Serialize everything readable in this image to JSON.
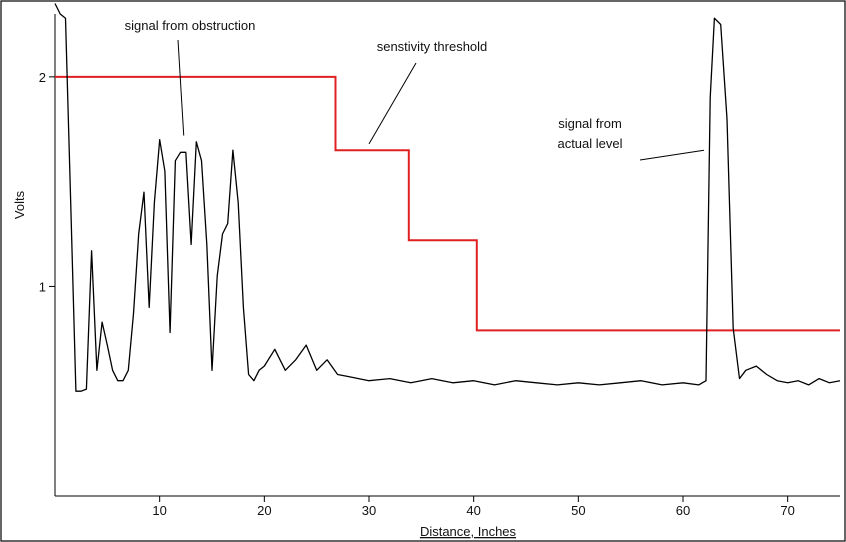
{
  "chart_data": {
    "type": "line",
    "title": "",
    "xlabel": "Distance, Inches",
    "ylabel": "Volts",
    "xlim": [
      0,
      75
    ],
    "ylim": [
      0,
      2.3
    ],
    "x_ticks": [
      10,
      20,
      30,
      40,
      50,
      60,
      70
    ],
    "y_ticks": [
      1,
      2
    ],
    "grid": false,
    "legend": "none",
    "colors": {
      "signal": "#000000",
      "threshold": "#e02020",
      "frame": "#000000"
    },
    "series": [
      {
        "role": "signal",
        "x": [
          0,
          0.5,
          1,
          1.5,
          2,
          2.5,
          3,
          3.5,
          4,
          4.5,
          5,
          5.5,
          6,
          6.5,
          7,
          7.5,
          8,
          8.5,
          9,
          9.5,
          10,
          10.5,
          11,
          11.5,
          12,
          12.5,
          13,
          13.5,
          14,
          14.5,
          15,
          15.5,
          16,
          16.5,
          17,
          17.5,
          18,
          18.5,
          19,
          19.5,
          20,
          21,
          22,
          23,
          24,
          25,
          26,
          27,
          28,
          30,
          32,
          34,
          36,
          38,
          40,
          42,
          44,
          46,
          48,
          50,
          52,
          54,
          56,
          58,
          60,
          61.5,
          62.2,
          62.6,
          63,
          63.6,
          64.2,
          64.8,
          65.4,
          66,
          67,
          68,
          69,
          70,
          71,
          72,
          73,
          74,
          75
        ],
        "y": [
          2.35,
          2.3,
          2.28,
          1.4,
          0.5,
          0.5,
          0.51,
          1.17,
          0.6,
          0.83,
          0.72,
          0.6,
          0.55,
          0.55,
          0.6,
          0.87,
          1.25,
          1.45,
          0.9,
          1.4,
          1.7,
          1.55,
          0.78,
          1.6,
          1.64,
          1.64,
          1.2,
          1.69,
          1.6,
          1.2,
          0.6,
          1.05,
          1.25,
          1.3,
          1.65,
          1.4,
          0.9,
          0.58,
          0.55,
          0.6,
          0.62,
          0.7,
          0.6,
          0.65,
          0.72,
          0.6,
          0.65,
          0.58,
          0.57,
          0.55,
          0.56,
          0.54,
          0.56,
          0.54,
          0.55,
          0.53,
          0.55,
          0.54,
          0.53,
          0.54,
          0.53,
          0.54,
          0.55,
          0.53,
          0.54,
          0.53,
          0.55,
          1.9,
          2.28,
          2.25,
          1.8,
          0.8,
          0.56,
          0.6,
          0.62,
          0.58,
          0.55,
          0.54,
          0.55,
          0.53,
          0.56,
          0.54,
          0.55
        ]
      },
      {
        "role": "threshold",
        "x": [
          0,
          26.8,
          26.8,
          33.8,
          33.8,
          40.3,
          40.3,
          75
        ],
        "y": [
          2.0,
          2.0,
          1.65,
          1.65,
          1.22,
          1.22,
          0.79,
          0.79
        ]
      }
    ],
    "annotations": [
      {
        "lines": [
          "signal from obstruction"
        ],
        "x": 12.3,
        "y": 1.72
      },
      {
        "lines": [
          "senstivity threshold"
        ],
        "x": 30.0,
        "y": 1.68
      },
      {
        "lines": [
          "signal from",
          "actual level"
        ],
        "x": 62.0,
        "y": 1.65
      }
    ]
  }
}
